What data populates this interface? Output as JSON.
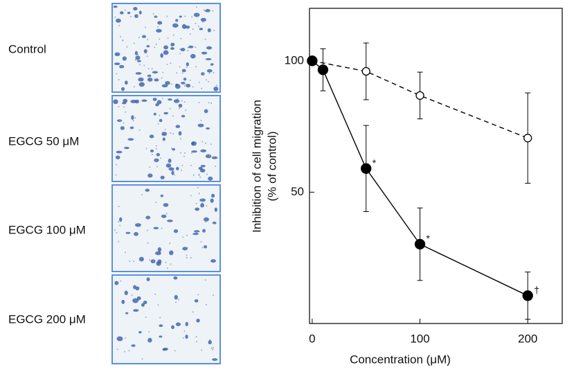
{
  "panels": [
    {
      "label": "Control"
    },
    {
      "label": "EGCG 50 μM"
    },
    {
      "label": "EGCG 100 μM"
    },
    {
      "label": "EGCG 200 μM"
    }
  ],
  "chart_data": {
    "type": "line",
    "xlabel": "Concentration (μM)",
    "ylabel": [
      "Inhibition of cell migration",
      "(% of control)"
    ],
    "xlim": [
      -2.5,
      232
    ],
    "xticks": [
      0,
      100,
      200
    ],
    "ylim": [
      0,
      120
    ],
    "yticks": [
      50,
      100
    ],
    "series": [
      {
        "color": "#000000",
        "marker": "filled",
        "dash": false,
        "x": [
          0,
          10,
          50,
          100,
          200
        ],
        "values": [
          100,
          96.6,
          59,
          30.2,
          10.6
        ],
        "errors": [
          null,
          8,
          16.4,
          13.8,
          9
        ],
        "annotations": [
          null,
          null,
          "*",
          "*",
          "†"
        ]
      },
      {
        "color": "#000000",
        "marker": "open",
        "dash": true,
        "x": [
          0,
          50,
          100,
          200
        ],
        "values": [
          100,
          96,
          86.8,
          70.6
        ],
        "errors": [
          null,
          10.8,
          8.9,
          17.2
        ]
      }
    ]
  }
}
